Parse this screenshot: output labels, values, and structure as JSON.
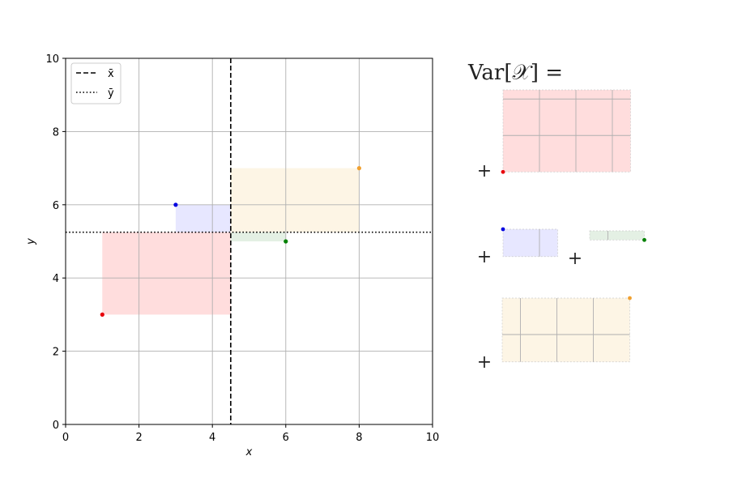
{
  "chart_data": {
    "type": "scatter",
    "title": "",
    "xlabel": "x",
    "ylabel": "y",
    "xlim": [
      0,
      10
    ],
    "ylim": [
      0,
      10
    ],
    "xticks": [
      0,
      2,
      4,
      6,
      8,
      10
    ],
    "yticks": [
      0,
      2,
      4,
      6,
      8,
      10
    ],
    "grid": true,
    "legend_position": "top-left",
    "mean_x": 4.5,
    "mean_y": 5.25,
    "legend": [
      {
        "label": "x̄",
        "style": "dashed"
      },
      {
        "label": "ȳ",
        "style": "dotted"
      }
    ],
    "points": [
      {
        "x": 1,
        "y": 3,
        "color": "#e8000b",
        "fill": "#ff2c2c"
      },
      {
        "x": 3,
        "y": 6,
        "color": "#0000e0",
        "fill": "#6b6bff"
      },
      {
        "x": 6,
        "y": 5,
        "color": "#008000",
        "fill": "#5aa05a"
      },
      {
        "x": 8,
        "y": 7,
        "color": "#f0a030",
        "fill": "#f0c060"
      }
    ],
    "formula_label": "Var[𝒳] =",
    "plus_sign": "+"
  }
}
